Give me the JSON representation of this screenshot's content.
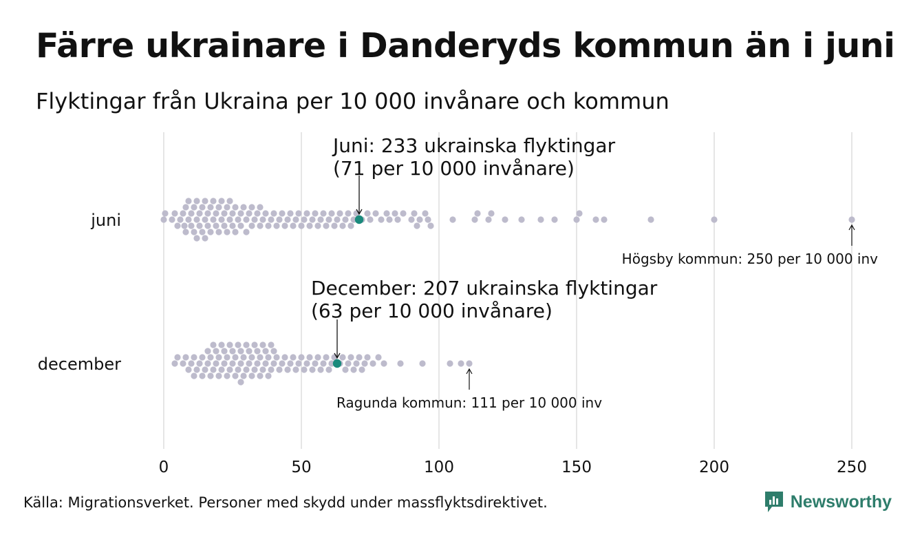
{
  "colors": {
    "dot": "#bdbbcc",
    "highlight": "#1a8a7c",
    "grid": "#d4d4d4",
    "brand": "#2e7d6b",
    "text": "#111111"
  },
  "chart_data": {
    "type": "scatter",
    "subtype": "beeswarm",
    "title": "Färre ukrainare i Danderyds kommun än i juni",
    "subtitle": "Flyktingar från Ukraina per 10 000 invånare och kommun",
    "xlabel": "",
    "ylabel": "",
    "xlim": [
      0,
      250
    ],
    "xticks": [
      0,
      50,
      100,
      150,
      200,
      250
    ],
    "grid": true,
    "categories": [
      "juni",
      "december"
    ],
    "series": [
      {
        "name": "juni",
        "values": [
          0,
          0.5,
          3,
          4,
          5,
          6,
          7,
          7.5,
          8,
          8,
          9,
          9,
          10,
          10,
          11,
          11,
          12,
          12,
          12,
          13,
          13,
          14,
          14,
          15,
          15,
          15,
          16,
          16,
          17,
          17,
          18,
          18,
          19,
          19,
          20,
          20,
          21,
          21,
          22,
          22,
          23,
          23,
          24,
          24,
          25,
          25,
          26,
          26,
          27,
          28,
          28,
          29,
          30,
          30,
          31,
          32,
          32,
          33,
          34,
          35,
          35,
          36,
          37,
          38,
          39,
          40,
          41,
          42,
          43,
          44,
          45,
          46,
          47,
          48,
          49,
          50,
          51,
          52,
          53,
          54,
          55,
          56,
          57,
          58,
          59,
          60,
          61,
          62,
          63,
          64,
          65,
          66,
          67,
          68,
          69,
          70,
          72,
          74,
          75,
          77,
          79,
          81,
          82,
          84,
          85,
          87,
          90,
          91,
          92,
          93,
          95,
          96,
          97,
          105,
          113,
          114,
          118,
          119,
          124,
          130,
          137,
          142,
          150,
          151,
          157,
          160,
          177,
          200,
          250
        ],
        "highlight": 71,
        "annotation": "Juni: 233 ukrainska flyktingar\n(71 per 10 000 invånare)",
        "max_label": "Högsby kommun: 250 per 10 000 inv"
      },
      {
        "name": "december",
        "values": [
          4,
          5,
          7,
          8,
          9,
          10,
          11,
          11,
          12,
          13,
          14,
          14,
          15,
          16,
          16,
          17,
          17,
          18,
          18,
          19,
          19,
          20,
          20,
          21,
          21,
          22,
          22,
          23,
          23,
          24,
          24,
          25,
          25,
          26,
          26,
          27,
          27,
          28,
          28,
          28,
          29,
          29,
          30,
          30,
          31,
          31,
          32,
          32,
          33,
          33,
          34,
          34,
          35,
          35,
          36,
          36,
          37,
          37,
          38,
          38,
          39,
          39,
          40,
          40,
          41,
          42,
          43,
          44,
          45,
          46,
          47,
          48,
          49,
          50,
          51,
          52,
          53,
          54,
          55,
          56,
          57,
          58,
          59,
          60,
          61,
          62,
          64,
          65,
          66,
          67,
          68,
          69,
          70,
          71,
          72,
          73,
          74,
          76,
          78,
          80,
          86,
          94,
          104,
          108,
          111
        ],
        "highlight": 63,
        "annotation": "December: 207 ukrainska flyktingar\n(63 per 10 000 invånare)",
        "max_label": "Ragunda kommun: 111 per 10 000 inv"
      }
    ]
  },
  "footer": {
    "source": "Källa: Migrationsverket. Personer med skydd under massflyktsdirektivet.",
    "brand": "Newsworthy"
  }
}
